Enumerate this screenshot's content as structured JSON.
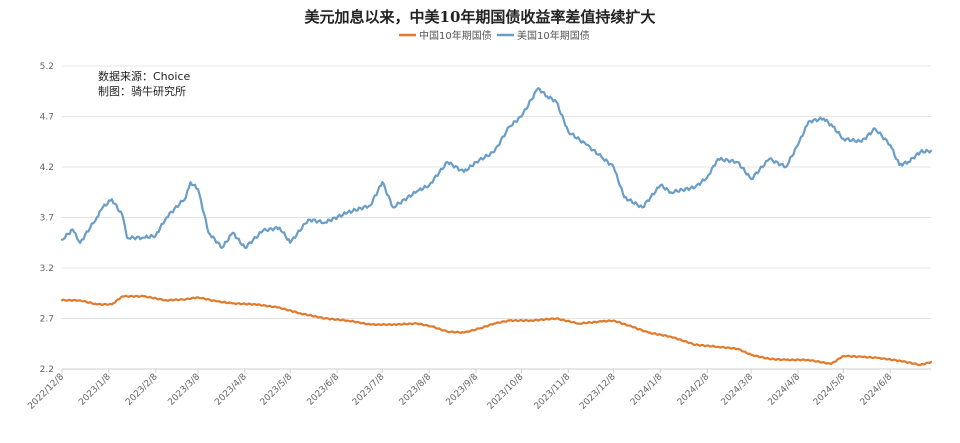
{
  "chart_data": {
    "type": "line",
    "title": "美元加息以来，中美10年期国债收益率差值持续扩大",
    "notes": [
      "数据来源：Choice",
      "制图：骑牛研究所"
    ],
    "legend_position": "top-center",
    "grid": true,
    "ylim": [
      2.2,
      5.2
    ],
    "yticks": [
      "2.2",
      "2.7",
      "3.2",
      "3.7",
      "4.2",
      "4.7",
      "5.2"
    ],
    "xlim": [
      "2022-12-08",
      "2024-07-05"
    ],
    "xticks": [
      "2022/12/8",
      "2023/1/8",
      "2023/2/8",
      "2023/3/8",
      "2023/4/8",
      "2023/5/8",
      "2023/6/8",
      "2023/7/8",
      "2023/8/8",
      "2023/9/8",
      "2023/10/8",
      "2023/11/8",
      "2023/12/8",
      "2024/1/8",
      "2024/2/8",
      "2024/3/8",
      "2024/4/8",
      "2024/5/8",
      "2024/6/8"
    ],
    "series": [
      {
        "name": "中国10年期国债",
        "color": "#e07b2e",
        "points": [
          [
            "2022-12-08",
            2.88
          ],
          [
            "2022-12-20",
            2.88
          ],
          [
            "2022-12-31",
            2.84
          ],
          [
            "2023-01-10",
            2.84
          ],
          [
            "2023-01-17",
            2.92
          ],
          [
            "2023-01-31",
            2.92
          ],
          [
            "2023-02-15",
            2.88
          ],
          [
            "2023-02-28",
            2.89
          ],
          [
            "2023-03-08",
            2.91
          ],
          [
            "2023-03-20",
            2.87
          ],
          [
            "2023-03-31",
            2.85
          ],
          [
            "2023-04-15",
            2.84
          ],
          [
            "2023-04-30",
            2.81
          ],
          [
            "2023-05-15",
            2.75
          ],
          [
            "2023-05-31",
            2.7
          ],
          [
            "2023-06-15",
            2.68
          ],
          [
            "2023-06-30",
            2.64
          ],
          [
            "2023-07-15",
            2.64
          ],
          [
            "2023-07-31",
            2.65
          ],
          [
            "2023-08-10",
            2.62
          ],
          [
            "2023-08-20",
            2.57
          ],
          [
            "2023-08-31",
            2.56
          ],
          [
            "2023-09-10",
            2.6
          ],
          [
            "2023-09-20",
            2.65
          ],
          [
            "2023-09-30",
            2.68
          ],
          [
            "2023-10-15",
            2.68
          ],
          [
            "2023-10-31",
            2.7
          ],
          [
            "2023-11-15",
            2.65
          ],
          [
            "2023-11-30",
            2.67
          ],
          [
            "2023-12-08",
            2.68
          ],
          [
            "2023-12-20",
            2.62
          ],
          [
            "2023-12-31",
            2.56
          ],
          [
            "2024-01-15",
            2.52
          ],
          [
            "2024-01-31",
            2.44
          ],
          [
            "2024-02-15",
            2.42
          ],
          [
            "2024-02-28",
            2.4
          ],
          [
            "2024-03-08",
            2.34
          ],
          [
            "2024-03-20",
            2.3
          ],
          [
            "2024-03-31",
            2.29
          ],
          [
            "2024-04-15",
            2.29
          ],
          [
            "2024-04-30",
            2.25
          ],
          [
            "2024-05-08",
            2.33
          ],
          [
            "2024-05-20",
            2.32
          ],
          [
            "2024-05-31",
            2.31
          ],
          [
            "2024-06-15",
            2.28
          ],
          [
            "2024-06-28",
            2.24
          ],
          [
            "2024-07-05",
            2.27
          ]
        ]
      },
      {
        "name": "美国10年期国债",
        "color": "#6a9ec7",
        "points": [
          [
            "2022-12-08",
            3.48
          ],
          [
            "2022-12-15",
            3.58
          ],
          [
            "2022-12-20",
            3.45
          ],
          [
            "2022-12-31",
            3.7
          ],
          [
            "2023-01-04",
            3.8
          ],
          [
            "2023-01-10",
            3.88
          ],
          [
            "2023-01-17",
            3.72
          ],
          [
            "2023-01-20",
            3.5
          ],
          [
            "2023-01-31",
            3.5
          ],
          [
            "2023-02-08",
            3.52
          ],
          [
            "2023-02-15",
            3.7
          ],
          [
            "2023-02-28",
            3.9
          ],
          [
            "2023-03-03",
            4.05
          ],
          [
            "2023-03-08",
            3.98
          ],
          [
            "2023-03-15",
            3.55
          ],
          [
            "2023-03-24",
            3.4
          ],
          [
            "2023-03-31",
            3.55
          ],
          [
            "2023-04-08",
            3.4
          ],
          [
            "2023-04-20",
            3.57
          ],
          [
            "2023-05-01",
            3.6
          ],
          [
            "2023-05-08",
            3.45
          ],
          [
            "2023-05-20",
            3.68
          ],
          [
            "2023-05-31",
            3.65
          ],
          [
            "2023-06-15",
            3.75
          ],
          [
            "2023-06-30",
            3.82
          ],
          [
            "2023-07-08",
            4.05
          ],
          [
            "2023-07-15",
            3.8
          ],
          [
            "2023-07-31",
            3.96
          ],
          [
            "2023-08-08",
            4.02
          ],
          [
            "2023-08-20",
            4.25
          ],
          [
            "2023-08-31",
            4.15
          ],
          [
            "2023-09-08",
            4.25
          ],
          [
            "2023-09-20",
            4.35
          ],
          [
            "2023-09-30",
            4.6
          ],
          [
            "2023-10-08",
            4.7
          ],
          [
            "2023-10-19",
            4.98
          ],
          [
            "2023-10-25",
            4.9
          ],
          [
            "2023-10-31",
            4.85
          ],
          [
            "2023-11-08",
            4.55
          ],
          [
            "2023-11-20",
            4.42
          ],
          [
            "2023-11-30",
            4.3
          ],
          [
            "2023-12-08",
            4.2
          ],
          [
            "2023-12-15",
            3.9
          ],
          [
            "2023-12-27",
            3.8
          ],
          [
            "2024-01-08",
            4.02
          ],
          [
            "2024-01-15",
            3.95
          ],
          [
            "2024-01-31",
            4.0
          ],
          [
            "2024-02-08",
            4.1
          ],
          [
            "2024-02-15",
            4.28
          ],
          [
            "2024-02-28",
            4.25
          ],
          [
            "2024-03-08",
            4.08
          ],
          [
            "2024-03-20",
            4.28
          ],
          [
            "2024-03-31",
            4.2
          ],
          [
            "2024-04-08",
            4.42
          ],
          [
            "2024-04-15",
            4.65
          ],
          [
            "2024-04-25",
            4.68
          ],
          [
            "2024-05-01",
            4.6
          ],
          [
            "2024-05-08",
            4.48
          ],
          [
            "2024-05-20",
            4.45
          ],
          [
            "2024-05-29",
            4.58
          ],
          [
            "2024-06-08",
            4.42
          ],
          [
            "2024-06-14",
            4.22
          ],
          [
            "2024-06-20",
            4.25
          ],
          [
            "2024-06-28",
            4.35
          ],
          [
            "2024-07-05",
            4.36
          ]
        ]
      }
    ]
  }
}
